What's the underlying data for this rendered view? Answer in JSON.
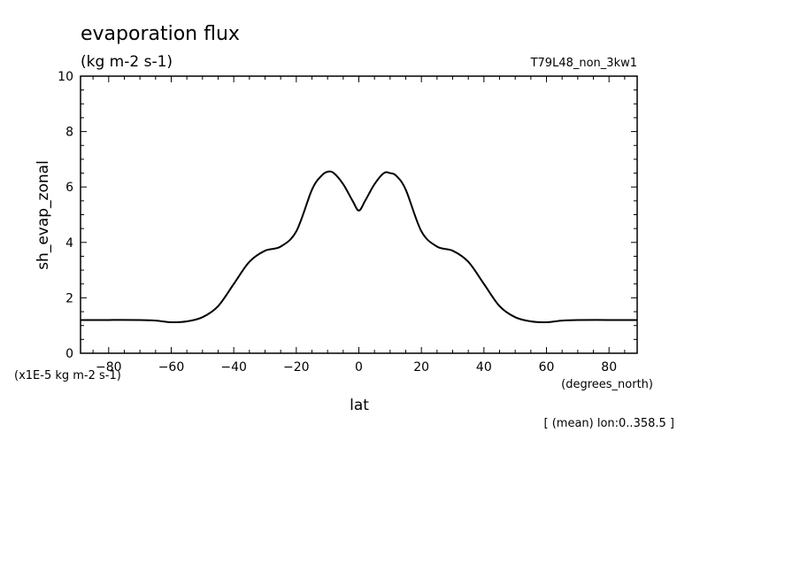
{
  "header": {
    "title": "evaporation flux",
    "units": "(kg m-2 s-1)",
    "dataset": "T79L48_non_3kw1"
  },
  "footer": {
    "scale_note": "(x1E-5 kg m-2 s-1)",
    "x_units": "(degrees_north)",
    "mean_note": "[ (mean) lon:0..358.5 ]"
  },
  "chart_data": {
    "type": "line",
    "title": "evaporation flux",
    "subtitle": "(kg m-2 s-1)",
    "xlabel": "lat",
    "ylabel": "sh_evap_zonal",
    "x_units": "(degrees_north)",
    "y_scale_note": "(x1E-5 kg m-2 s-1)",
    "xlim": [
      -89,
      89
    ],
    "ylim": [
      0,
      10
    ],
    "x_ticks": [
      -80,
      -60,
      -40,
      -20,
      0,
      20,
      40,
      60,
      80
    ],
    "y_ticks": [
      0,
      2,
      4,
      6,
      8,
      10
    ],
    "grid": false,
    "series": [
      {
        "x": [
          -89,
          -80,
          -70,
          -65,
          -60,
          -55,
          -50,
          -45,
          -40,
          -35,
          -30,
          -25,
          -20,
          -15,
          -12,
          -10,
          -8,
          -5,
          -2,
          0,
          2,
          5,
          8,
          10,
          12,
          15,
          20,
          25,
          30,
          35,
          40,
          45,
          50,
          55,
          60,
          65,
          70,
          80,
          89
        ],
        "values": [
          1.2,
          1.2,
          1.2,
          1.18,
          1.12,
          1.15,
          1.3,
          1.7,
          2.5,
          3.3,
          3.7,
          3.85,
          4.4,
          5.9,
          6.4,
          6.55,
          6.5,
          6.1,
          5.5,
          5.15,
          5.5,
          6.1,
          6.5,
          6.5,
          6.4,
          5.9,
          4.4,
          3.85,
          3.7,
          3.3,
          2.5,
          1.7,
          1.3,
          1.15,
          1.12,
          1.18,
          1.2,
          1.2,
          1.2
        ]
      }
    ]
  }
}
